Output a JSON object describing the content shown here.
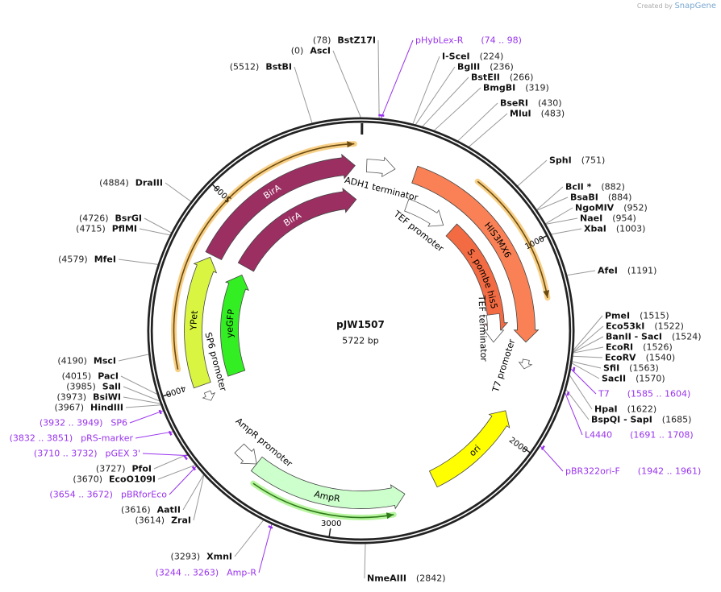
{
  "watermark": {
    "prefix": "Created by",
    "brand": "SnapGene"
  },
  "plasmid": {
    "name": "pJW1507",
    "length_label": "5722 bp",
    "length": 5722
  },
  "ticks": [
    "1000",
    "2000",
    "3000",
    "4000",
    "5000"
  ],
  "features": [
    {
      "name": "BirA",
      "start": 4720,
      "end": 5690,
      "strand": 1,
      "color": "#9b2f62",
      "text_color": "#ffffff"
    },
    {
      "name": "BirA",
      "start": 4752,
      "end": 5690,
      "strand": 1,
      "color": "#9b2f62",
      "text_color": "#ffffff"
    },
    {
      "name": "YPet",
      "start": 3990,
      "end": 4705,
      "strand": 1,
      "color": "#d9f542",
      "text_color": "#000000"
    },
    {
      "name": "yeGFP",
      "start": 3990,
      "end": 4690,
      "strand": 1,
      "color": "#33ee22",
      "text_color": "#000000"
    },
    {
      "name": "HIS3MX6",
      "start": 302,
      "end": 1494,
      "strand": 1,
      "color": "#f98155",
      "text_color": "#000000"
    },
    {
      "name": "S. pombe his5",
      "start": 667,
      "end": 1462,
      "strand": 1,
      "color": "#f26b43",
      "text_color": "#000000"
    },
    {
      "name": "ori",
      "start": 1891,
      "end": 2448,
      "strand": -1,
      "color": "#ffff00",
      "text_color": "#000000"
    },
    {
      "name": "AmpR",
      "start": 2622,
      "end": 3465,
      "strand": -1,
      "color": "#ccffcc",
      "text_color": "#000000"
    },
    {
      "name": "ADH1 terminator",
      "start": 32,
      "end": 190,
      "strand": 1,
      "color": "#ffffff",
      "text_color": "#000000"
    },
    {
      "name": "TEF promoter",
      "start": 318,
      "end": 604,
      "strand": 1,
      "color": "#ffffff",
      "text_color": "#000000"
    },
    {
      "name": "TEF terminator",
      "start": 1319,
      "end": 1510,
      "strand": 1,
      "color": "#ffffff",
      "text_color": "#000000"
    },
    {
      "name": "T7 promoter",
      "start": 1590,
      "end": 1640,
      "strand": 1,
      "color": "#ffffff",
      "text_color": "#000000"
    },
    {
      "name": "AmpR promoter",
      "start": 3465,
      "end": 3590,
      "strand": -1,
      "color": "#ffffff",
      "text_color": "#000000"
    },
    {
      "name": "SP6 promoter",
      "start": 3894,
      "end": 3945,
      "strand": -1,
      "color": "#ffffff",
      "text_color": "#000000"
    }
  ],
  "regions": [
    {
      "start": 604,
      "end": 1272,
      "color": "#f7cf86"
    },
    {
      "start": 4101,
      "end": 5690,
      "color": "#f7cf86"
    },
    {
      "start": 2700,
      "end": 3420,
      "color": "#b8f5a0"
    }
  ],
  "enzymes": [
    {
      "name": "BstZ17I",
      "pos": "78",
      "bp": 78
    },
    {
      "name": "AscI",
      "pos": "0",
      "bp": 0
    },
    {
      "name": "BstBI",
      "pos": "5512",
      "bp": 5512
    },
    {
      "name": "I-SceI",
      "pos": "224",
      "bp": 224
    },
    {
      "name": "BglII",
      "pos": "236",
      "bp": 236
    },
    {
      "name": "BstEII",
      "pos": "266",
      "bp": 266
    },
    {
      "name": "BmgBI",
      "pos": "319",
      "bp": 319
    },
    {
      "name": "BseRI",
      "pos": "430",
      "bp": 430
    },
    {
      "name": "MluI",
      "pos": "483",
      "bp": 483
    },
    {
      "name": "SphI",
      "pos": "751",
      "bp": 751
    },
    {
      "name": "BclI *",
      "pos": "882",
      "bp": 882
    },
    {
      "name": "BsaBI",
      "pos": "884",
      "bp": 884
    },
    {
      "name": "NgoMIV",
      "pos": "952",
      "bp": 952
    },
    {
      "name": "NaeI",
      "pos": "954",
      "bp": 954
    },
    {
      "name": "XbaI",
      "pos": "1003",
      "bp": 1003
    },
    {
      "name": "AfeI",
      "pos": "1191",
      "bp": 1191
    },
    {
      "name": "PmeI",
      "pos": "1515",
      "bp": 1515
    },
    {
      "name": "Eco53kI",
      "pos": "1522",
      "bp": 1522
    },
    {
      "name": "BanII  -  SacI",
      "pos": "1524",
      "bp": 1524
    },
    {
      "name": "EcoRI",
      "pos": "1526",
      "bp": 1526
    },
    {
      "name": "EcoRV",
      "pos": "1540",
      "bp": 1540
    },
    {
      "name": "SfiI",
      "pos": "1563",
      "bp": 1563
    },
    {
      "name": "SacII",
      "pos": "1570",
      "bp": 1570
    },
    {
      "name": "HpaI",
      "pos": "1622",
      "bp": 1622
    },
    {
      "name": "BspQI  -  SapI",
      "pos": "1685",
      "bp": 1685
    },
    {
      "name": "NmeAIII",
      "pos": "2842",
      "bp": 2842
    },
    {
      "name": "XmnI",
      "pos": "3293",
      "bp": 3293
    },
    {
      "name": "AatII",
      "pos": "3616",
      "bp": 3616
    },
    {
      "name": "ZraI",
      "pos": "3614",
      "bp": 3614
    },
    {
      "name": "EcoO109I",
      "pos": "3670",
      "bp": 3670
    },
    {
      "name": "PfoI",
      "pos": "3727",
      "bp": 3727
    },
    {
      "name": "HindIII",
      "pos": "3967",
      "bp": 3967
    },
    {
      "name": "BsiWI",
      "pos": "3973",
      "bp": 3973
    },
    {
      "name": "SalI",
      "pos": "3985",
      "bp": 3985
    },
    {
      "name": "PacI",
      "pos": "4015",
      "bp": 4015
    },
    {
      "name": "MscI",
      "pos": "4190",
      "bp": 4190
    },
    {
      "name": "MfeI",
      "pos": "4579",
      "bp": 4579
    },
    {
      "name": "PflMI",
      "pos": "4715",
      "bp": 4715
    },
    {
      "name": "BsrGI",
      "pos": "4726",
      "bp": 4726
    },
    {
      "name": "DraIII",
      "pos": "4884",
      "bp": 4884
    }
  ],
  "primers": [
    {
      "name": "pHybLex-R",
      "range": "74 .. 98",
      "start": 74,
      "end": 98
    },
    {
      "name": "T7",
      "range": "1585 .. 1604",
      "start": 1585,
      "end": 1604
    },
    {
      "name": "L4440",
      "range": "1691 .. 1708",
      "start": 1691,
      "end": 1708
    },
    {
      "name": "pBR322ori-F",
      "range": "1942 .. 1961",
      "start": 1942,
      "end": 1961
    },
    {
      "name": "Amp-R",
      "range": "3244 .. 3263",
      "start": 3244,
      "end": 3263
    },
    {
      "name": "pBRforEco",
      "range": "3654 .. 3672",
      "start": 3654,
      "end": 3672
    },
    {
      "name": "pGEX 3'",
      "range": "3710 .. 3732",
      "start": 3710,
      "end": 3732
    },
    {
      "name": "pRS-marker",
      "range": "3832 .. 3851",
      "start": 3832,
      "end": 3851
    },
    {
      "name": "SP6",
      "range": "3932 .. 3949",
      "start": 3932,
      "end": 3949
    }
  ],
  "colors": {
    "backbone": "#222222",
    "leader": "#999999",
    "primer": "#9933ee"
  }
}
